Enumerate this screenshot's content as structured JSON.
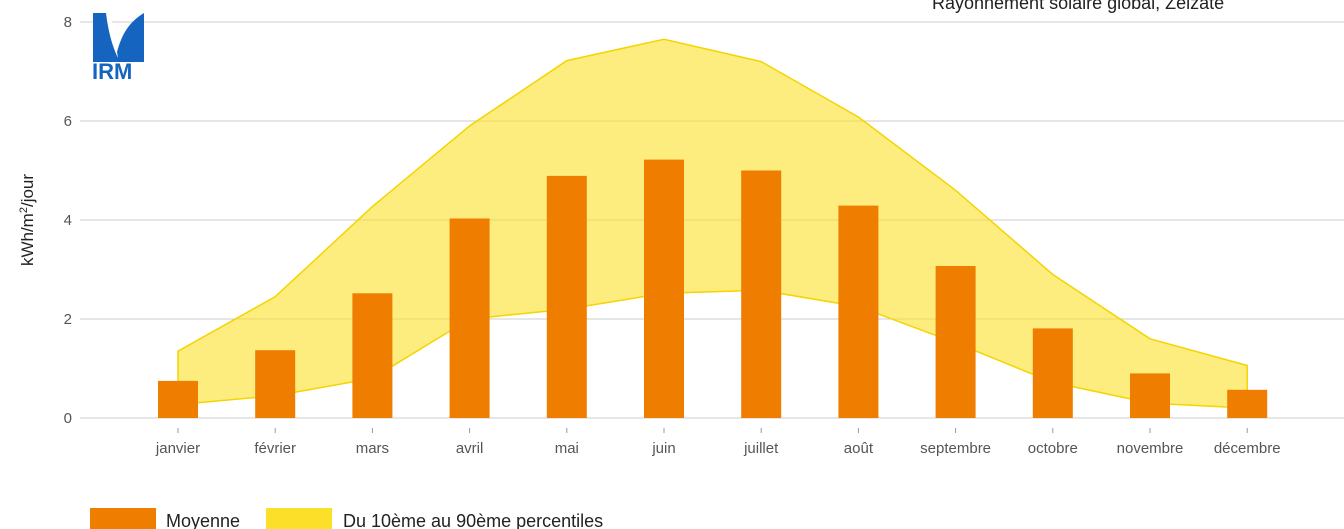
{
  "logo": {
    "text": "IRM",
    "color": "#1565c0"
  },
  "chart_data": {
    "type": "bar",
    "title": "Rayonnement solaire global, Zelzate",
    "ylabel": "kWh/m²/jour",
    "ylabel_base": "kWh/m",
    "ylabel_sup": "2",
    "ylabel_tail": "/jour",
    "ylim": [
      0,
      8
    ],
    "yticks": [
      0,
      2,
      4,
      6,
      8
    ],
    "grid": true,
    "legend_position": "bottom-left",
    "categories": [
      "janvier",
      "février",
      "mars",
      "avril",
      "mai",
      "juin",
      "juillet",
      "août",
      "septembre",
      "octobre",
      "novembre",
      "décembre"
    ],
    "series": [
      {
        "name": "Moyenne",
        "type": "bar",
        "color": "#ef7d00",
        "values": [
          0.75,
          1.37,
          2.52,
          4.03,
          4.89,
          5.22,
          5.0,
          4.29,
          3.07,
          1.81,
          0.9,
          0.57
        ]
      },
      {
        "name": "Du 10ème au 90ème percentiles",
        "type": "area-band",
        "color": "#fbdf28",
        "low": [
          0.27,
          0.45,
          0.8,
          2.0,
          2.2,
          2.52,
          2.58,
          2.25,
          1.52,
          0.72,
          0.3,
          0.2
        ],
        "high": [
          1.35,
          2.45,
          4.27,
          5.9,
          7.22,
          7.65,
          7.2,
          6.08,
          4.6,
          2.9,
          1.6,
          1.06
        ]
      }
    ]
  }
}
